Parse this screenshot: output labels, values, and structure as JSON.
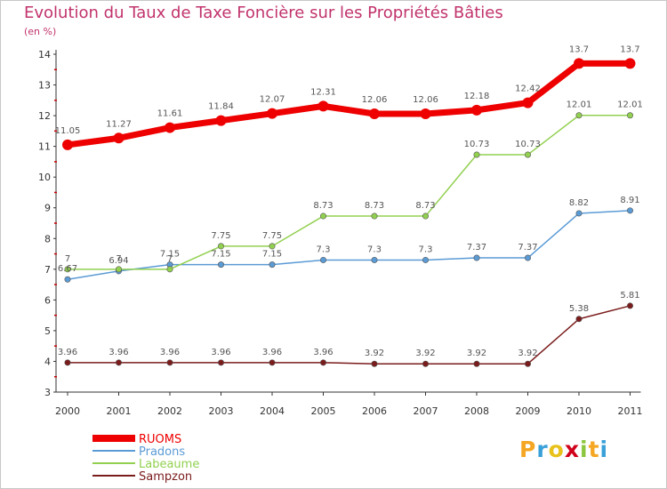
{
  "chart_data": {
    "type": "line",
    "title": "Evolution du Taux de Taxe Foncière sur les Propriétés Bâties",
    "ylabel": "(en %)",
    "xlabel": "",
    "x": [
      "2000",
      "2001",
      "2002",
      "2003",
      "2004",
      "2005",
      "2006",
      "2007",
      "2008",
      "2009",
      "2010",
      "2011"
    ],
    "yticks": [
      "3",
      "4",
      "5",
      "6",
      "7",
      "8",
      "9",
      "10",
      "11",
      "12",
      "13",
      "14"
    ],
    "ylim": [
      3,
      14
    ],
    "series": [
      {
        "name": "RUOMS",
        "color": "#ee0000",
        "values": [
          11.05,
          11.27,
          11.61,
          11.84,
          12.07,
          12.31,
          12.06,
          12.06,
          12.18,
          12.42,
          13.7,
          13.7
        ],
        "labels": [
          "11.05",
          "11.27",
          "11.61",
          "11.84",
          "12.07",
          "12.31",
          "12.06",
          "12.06",
          "12.18",
          "12.42",
          "13.7",
          "13.7"
        ]
      },
      {
        "name": "Pradons",
        "color": "#5b9bd5",
        "values": [
          6.67,
          6.94,
          7.15,
          7.15,
          7.15,
          7.3,
          7.3,
          7.3,
          7.37,
          7.37,
          8.82,
          8.91
        ],
        "labels": [
          "6.67",
          "6.94",
          "7.15",
          "7.15",
          "7.15",
          "7.3",
          "7.3",
          "7.3",
          "7.37",
          "7.37",
          "8.82",
          "8.91"
        ]
      },
      {
        "name": "Labeaume",
        "color": "#92d050",
        "values": [
          7,
          7,
          7,
          7.75,
          7.75,
          8.73,
          8.73,
          8.73,
          10.73,
          10.73,
          12.01,
          12.01
        ],
        "labels": [
          "7",
          "7",
          "7",
          "7.75",
          "7.75",
          "8.73",
          "8.73",
          "8.73",
          "10.73",
          "10.73",
          "12.01",
          "12.01"
        ]
      },
      {
        "name": "Sampzon",
        "color": "#7b1c1c",
        "values": [
          3.96,
          3.96,
          3.96,
          3.96,
          3.96,
          3.96,
          3.92,
          3.92,
          3.92,
          3.92,
          5.38,
          5.81
        ],
        "labels": [
          "3.96",
          "3.96",
          "3.96",
          "3.96",
          "3.96",
          "3.96",
          "3.92",
          "3.92",
          "3.92",
          "3.92",
          "5.38",
          "5.81"
        ]
      }
    ],
    "legend": "bottom-left",
    "grid": false
  },
  "logo": {
    "text": "Proxiti",
    "letters": [
      "P",
      "r",
      "o",
      "x",
      "i",
      "t",
      "i"
    ],
    "colors": [
      "#f5a623",
      "#3aa0d8",
      "#e8c21b",
      "#d0021b",
      "#8cc63f",
      "#f5a623",
      "#3aa0d8"
    ]
  }
}
